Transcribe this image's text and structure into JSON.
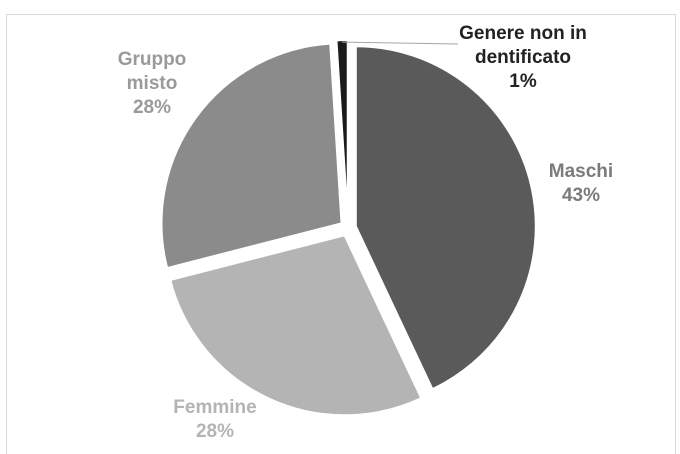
{
  "chart_data": {
    "type": "pie",
    "exploded": true,
    "start": "top, clockwise",
    "title": "",
    "legend": "none",
    "slices": [
      {
        "name": "Maschi",
        "value": 43,
        "pct_label": "43%",
        "color": "#5a5a5a",
        "label_color": "#7b7b7b"
      },
      {
        "name": "Femmine",
        "value": 28,
        "pct_label": "28%",
        "color": "#b4b4b4",
        "label_color": "#b4b4b4"
      },
      {
        "name": "Gruppo misto",
        "value": 28,
        "pct_label": "28%",
        "color": "#8b8b8b",
        "label_color": "#9a9a9a"
      },
      {
        "name": "Genere non indentificato",
        "value": 1,
        "pct_label": "1%",
        "color": "#1b1b1b",
        "label_color": "#222222"
      }
    ]
  }
}
